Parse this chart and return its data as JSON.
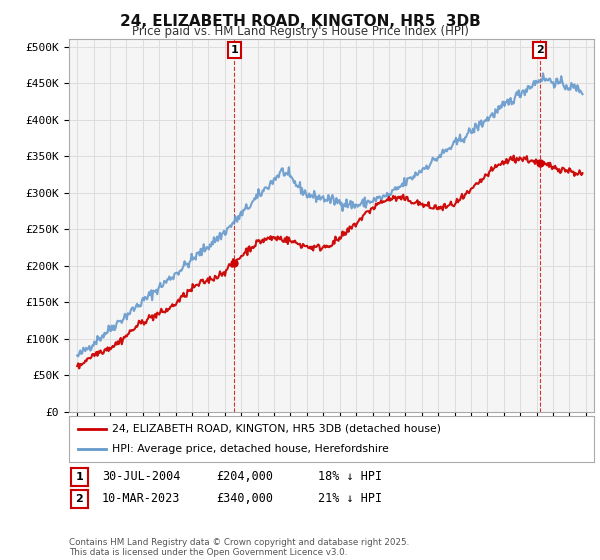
{
  "title": "24, ELIZABETH ROAD, KINGTON, HR5  3DB",
  "subtitle": "Price paid vs. HM Land Registry's House Price Index (HPI)",
  "background_color": "#ffffff",
  "grid_color": "#dddddd",
  "plot_bg_color": "#f5f5f5",
  "red_label": "24, ELIZABETH ROAD, KINGTON, HR5 3DB (detached house)",
  "blue_label": "HPI: Average price, detached house, Herefordshire",
  "annotation1": {
    "num": "1",
    "date": "30-JUL-2004",
    "price": "£204,000",
    "hpi": "18% ↓ HPI",
    "x_year": 2004.58
  },
  "annotation2": {
    "num": "2",
    "date": "10-MAR-2023",
    "price": "£340,000",
    "hpi": "21% ↓ HPI",
    "x_year": 2023.19
  },
  "footer": "Contains HM Land Registry data © Crown copyright and database right 2025.\nThis data is licensed under the Open Government Licence v3.0.",
  "ylim": [
    0,
    510000
  ],
  "xlim": [
    1994.5,
    2026.5
  ],
  "yticks": [
    0,
    50000,
    100000,
    150000,
    200000,
    250000,
    300000,
    350000,
    400000,
    450000,
    500000
  ],
  "ytick_labels": [
    "£0",
    "£50K",
    "£100K",
    "£150K",
    "£200K",
    "£250K",
    "£300K",
    "£350K",
    "£400K",
    "£450K",
    "£500K"
  ],
  "xticks": [
    1995,
    1996,
    1997,
    1998,
    1999,
    2000,
    2001,
    2002,
    2003,
    2004,
    2005,
    2006,
    2007,
    2008,
    2009,
    2010,
    2011,
    2012,
    2013,
    2014,
    2015,
    2016,
    2017,
    2018,
    2019,
    2020,
    2021,
    2022,
    2023,
    2024,
    2025,
    2026
  ],
  "red_color": "#cc0000",
  "blue_color": "#6699cc",
  "red_linewidth": 1.5,
  "blue_linewidth": 1.5
}
